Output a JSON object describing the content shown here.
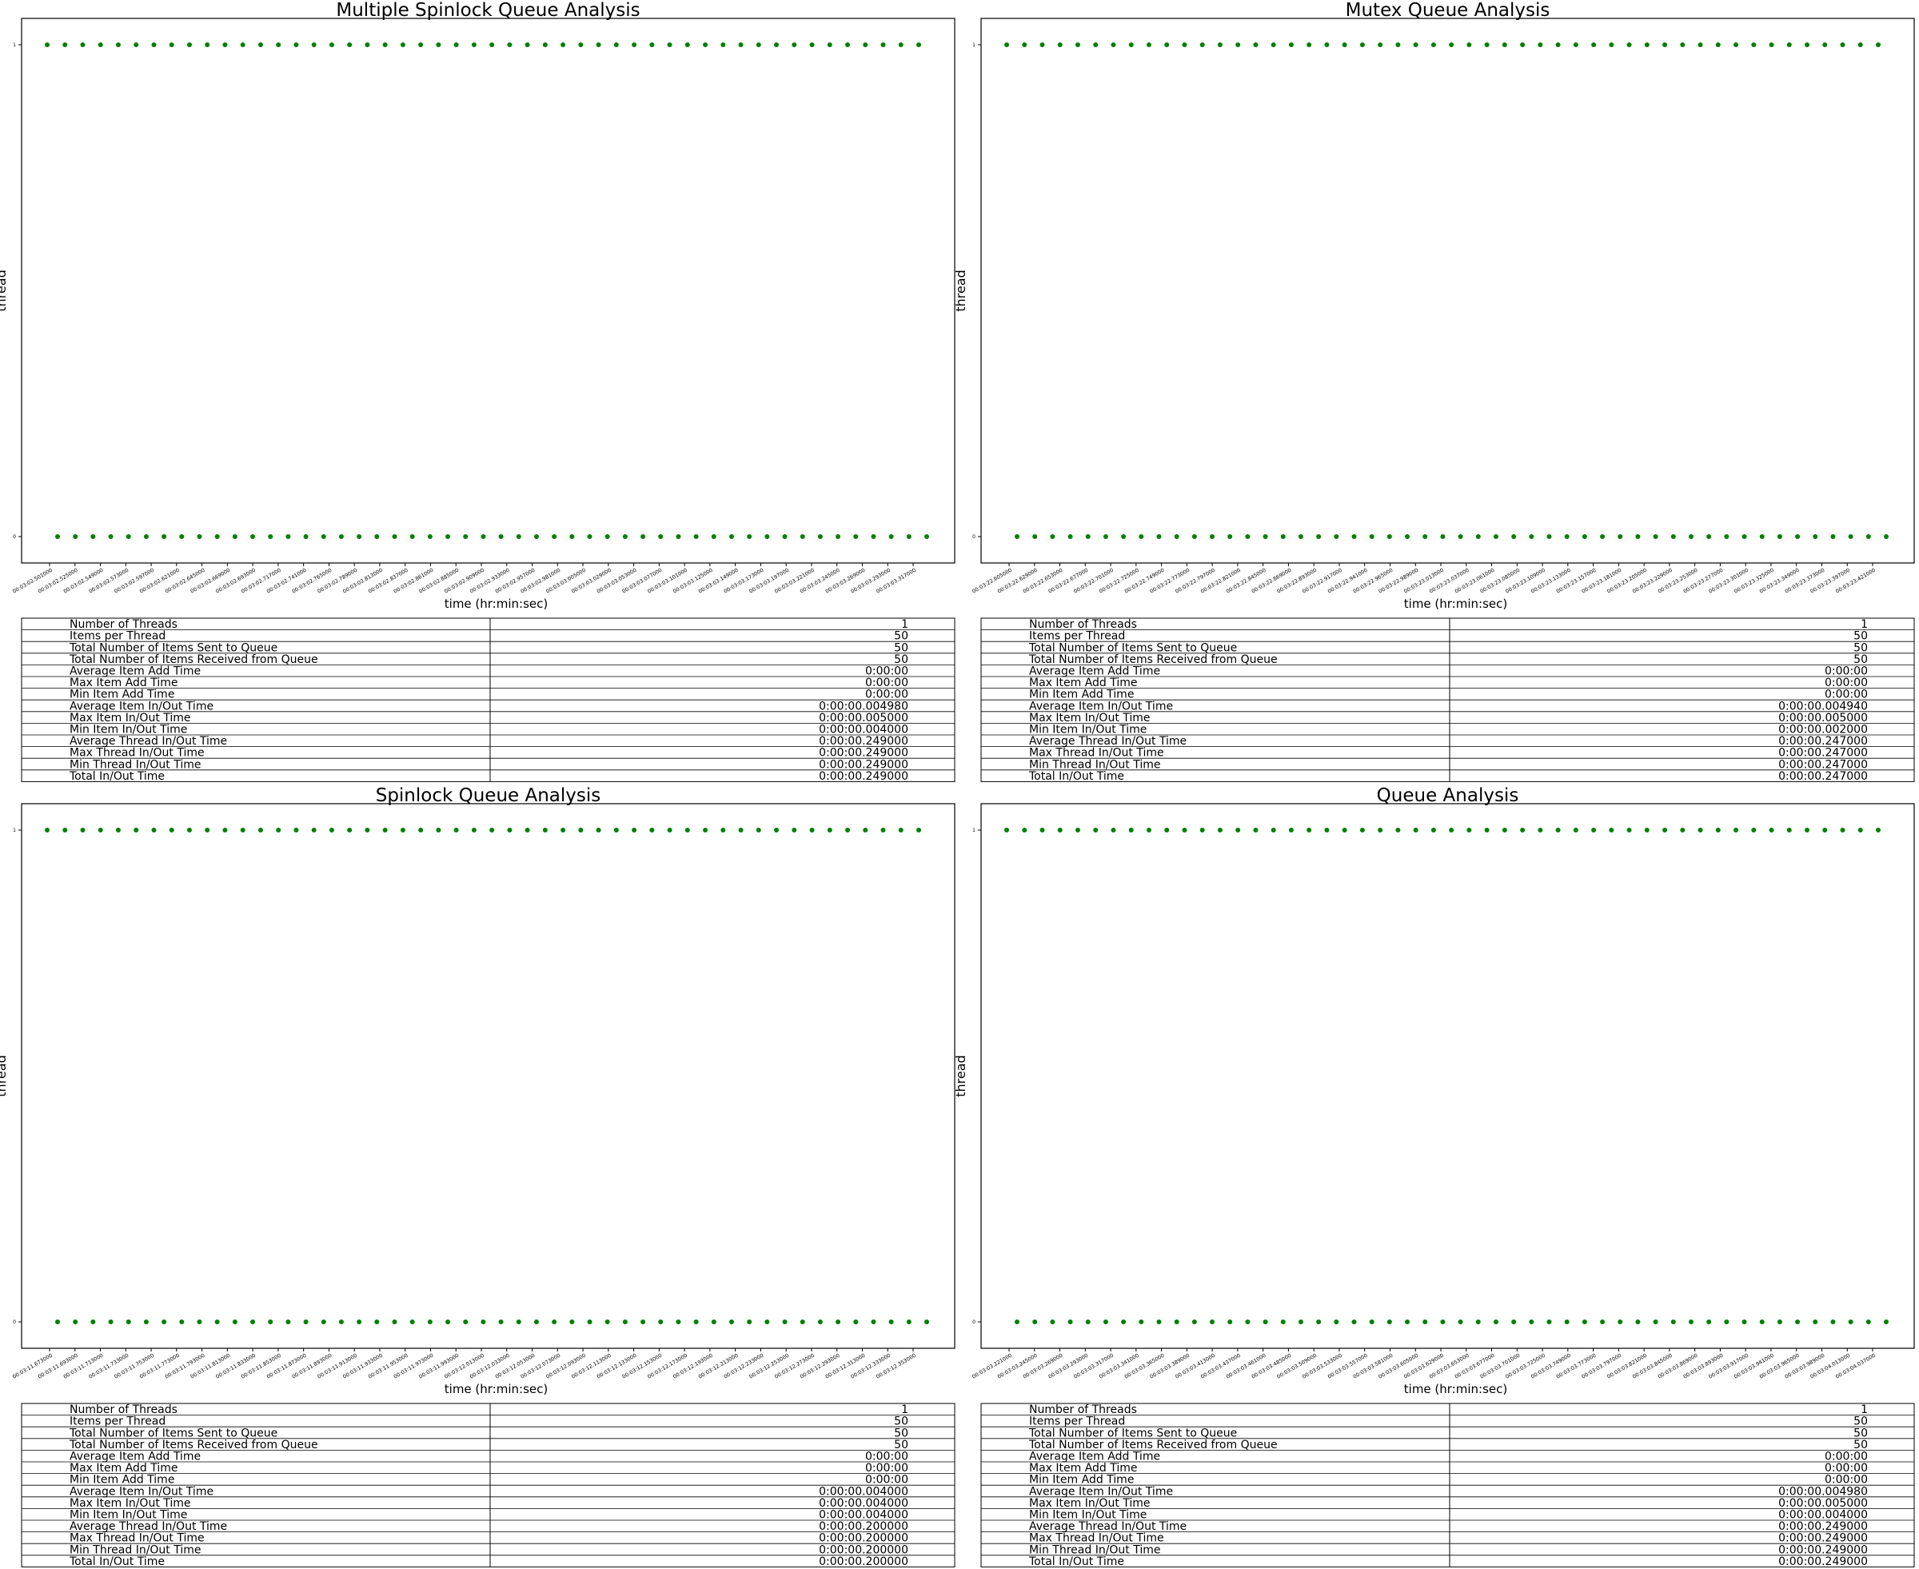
{
  "figure": {
    "marker_color": "#008000",
    "axis_color": "#000000",
    "grid": false,
    "legend": "none"
  },
  "chart_data": [
    {
      "type": "scatter",
      "title": "Multiple Spinlock Queue Analysis",
      "xlabel": "time (hr:min:sec)",
      "ylabel": "thread",
      "yticks": [
        "0",
        "1"
      ],
      "series": [
        {
          "y": 1,
          "count": 50
        },
        {
          "y": 0,
          "count": 50
        }
      ],
      "xticks": [
        "00:03:02.501000",
        "00:03:02.525000",
        "00:03:02.549000",
        "00:03:02.573000",
        "00:03:02.597000",
        "00:03:02.621000",
        "00:03:02.645000",
        "00:03:02.669000",
        "00:03:02.693000",
        "00:03:02.717000",
        "00:03:02.741000",
        "00:03:02.765000",
        "00:03:02.789000",
        "00:03:02.813000",
        "00:03:02.837000",
        "00:03:02.861000",
        "00:03:02.885000",
        "00:03:02.909000",
        "00:03:02.933000",
        "00:03:02.957000",
        "00:03:02.981000",
        "00:03:03.005000",
        "00:03:03.029000",
        "00:03:03.053000",
        "00:03:03.077000",
        "00:03:03.101000",
        "00:03:03.125000",
        "00:03:03.149000",
        "00:03:03.173000",
        "00:03:03.197000",
        "00:03:03.221000",
        "00:03:03.245000",
        "00:03:03.269000",
        "00:03:03.293000",
        "00:03:03.317000"
      ],
      "table": [
        [
          "Number of Threads",
          "1"
        ],
        [
          "Items per Thread",
          "50"
        ],
        [
          "Total Number of Items Sent to Queue",
          "50"
        ],
        [
          "Total Number of Items Received from Queue",
          "50"
        ],
        [
          "Average Item Add Time",
          "0:00:00"
        ],
        [
          "Max Item Add Time",
          "0:00:00"
        ],
        [
          "Min Item Add Time",
          "0:00:00"
        ],
        [
          "Average Item In/Out Time",
          "0:00:00.004980"
        ],
        [
          "Max Item In/Out Time",
          "0:00:00.005000"
        ],
        [
          "Min Item In/Out Time",
          "0:00:00.004000"
        ],
        [
          "Average Thread In/Out Time",
          "0:00:00.249000"
        ],
        [
          "Max Thread In/Out Time",
          "0:00:00.249000"
        ],
        [
          "Min Thread In/Out Time",
          "0:00:00.249000"
        ],
        [
          "Total In/Out Time",
          "0:00:00.249000"
        ]
      ]
    },
    {
      "type": "scatter",
      "title": "Mutex Queue Analysis",
      "xlabel": "time (hr:min:sec)",
      "ylabel": "thread",
      "yticks": [
        "0",
        "1"
      ],
      "series": [
        {
          "y": 1,
          "count": 50
        },
        {
          "y": 0,
          "count": 50
        }
      ],
      "xticks": [
        "00:03:22.605000",
        "00:03:22.629000",
        "00:03:22.653000",
        "00:03:22.677000",
        "00:03:22.701000",
        "00:03:22.725000",
        "00:03:22.749000",
        "00:03:22.773000",
        "00:03:22.797000",
        "00:03:22.821000",
        "00:03:22.845000",
        "00:03:22.869000",
        "00:03:22.893000",
        "00:03:22.917000",
        "00:03:22.941000",
        "00:03:22.965000",
        "00:03:22.989000",
        "00:03:23.013000",
        "00:03:23.037000",
        "00:03:23.061000",
        "00:03:23.085000",
        "00:03:23.109000",
        "00:03:23.133000",
        "00:03:23.157000",
        "00:03:23.181000",
        "00:03:23.205000",
        "00:03:23.229000",
        "00:03:23.253000",
        "00:03:23.277000",
        "00:03:23.301000",
        "00:03:23.325000",
        "00:03:23.349000",
        "00:03:23.373000",
        "00:03:23.397000",
        "00:03:23.421000"
      ],
      "table": [
        [
          "Number of Threads",
          "1"
        ],
        [
          "Items per Thread",
          "50"
        ],
        [
          "Total Number of Items Sent to Queue",
          "50"
        ],
        [
          "Total Number of Items Received from Queue",
          "50"
        ],
        [
          "Average Item Add Time",
          "0:00:00"
        ],
        [
          "Max Item Add Time",
          "0:00:00"
        ],
        [
          "Min Item Add Time",
          "0:00:00"
        ],
        [
          "Average Item In/Out Time",
          "0:00:00.004940"
        ],
        [
          "Max Item In/Out Time",
          "0:00:00.005000"
        ],
        [
          "Min Item In/Out Time",
          "0:00:00.002000"
        ],
        [
          "Average Thread In/Out Time",
          "0:00:00.247000"
        ],
        [
          "Max Thread In/Out Time",
          "0:00:00.247000"
        ],
        [
          "Min Thread In/Out Time",
          "0:00:00.247000"
        ],
        [
          "Total In/Out Time",
          "0:00:00.247000"
        ]
      ]
    },
    {
      "type": "scatter",
      "title": "Spinlock Queue Analysis",
      "xlabel": "time (hr:min:sec)",
      "ylabel": "thread",
      "yticks": [
        "0",
        "1"
      ],
      "series": [
        {
          "y": 1,
          "count": 50
        },
        {
          "y": 0,
          "count": 50
        }
      ],
      "xticks": [
        "00:03:11.673000",
        "00:03:11.693000",
        "00:03:11.713000",
        "00:03:11.733000",
        "00:03:11.753000",
        "00:03:11.773000",
        "00:03:11.793000",
        "00:03:11.813000",
        "00:03:11.833000",
        "00:03:11.853000",
        "00:03:11.873000",
        "00:03:11.893000",
        "00:03:11.913000",
        "00:03:11.933000",
        "00:03:11.953000",
        "00:03:11.973000",
        "00:03:11.993000",
        "00:03:12.013000",
        "00:03:12.033000",
        "00:03:12.053000",
        "00:03:12.073000",
        "00:03:12.093000",
        "00:03:12.113000",
        "00:03:12.133000",
        "00:03:12.153000",
        "00:03:12.173000",
        "00:03:12.193000",
        "00:03:12.213000",
        "00:03:12.233000",
        "00:03:12.253000",
        "00:03:12.273000",
        "00:03:12.293000",
        "00:03:12.313000",
        "00:03:12.333000",
        "00:03:12.353000"
      ],
      "table": [
        [
          "Number of Threads",
          "1"
        ],
        [
          "Items per Thread",
          "50"
        ],
        [
          "Total Number of Items Sent to Queue",
          "50"
        ],
        [
          "Total Number of Items Received from Queue",
          "50"
        ],
        [
          "Average Item Add Time",
          "0:00:00"
        ],
        [
          "Max Item Add Time",
          "0:00:00"
        ],
        [
          "Min Item Add Time",
          "0:00:00"
        ],
        [
          "Average Item In/Out Time",
          "0:00:00.004000"
        ],
        [
          "Max Item In/Out Time",
          "0:00:00.004000"
        ],
        [
          "Min Item In/Out Time",
          "0:00:00.004000"
        ],
        [
          "Average Thread In/Out Time",
          "0:00:00.200000"
        ],
        [
          "Max Thread In/Out Time",
          "0:00:00.200000"
        ],
        [
          "Min Thread In/Out Time",
          "0:00:00.200000"
        ],
        [
          "Total In/Out Time",
          "0:00:00.200000"
        ]
      ]
    },
    {
      "type": "scatter",
      "title": "Queue Analysis",
      "xlabel": "time (hr:min:sec)",
      "ylabel": "thread",
      "yticks": [
        "0",
        "1"
      ],
      "series": [
        {
          "y": 1,
          "count": 50
        },
        {
          "y": 0,
          "count": 50
        }
      ],
      "xticks": [
        "00:03:03.221000",
        "00:03:03.245000",
        "00:03:03.269000",
        "00:03:03.293000",
        "00:03:03.317000",
        "00:03:03.341000",
        "00:03:03.365000",
        "00:03:03.389000",
        "00:03:03.413000",
        "00:03:03.437000",
        "00:03:03.461000",
        "00:03:03.485000",
        "00:03:03.509000",
        "00:03:03.533000",
        "00:03:03.557000",
        "00:03:03.581000",
        "00:03:03.605000",
        "00:03:03.629000",
        "00:03:03.653000",
        "00:03:03.677000",
        "00:03:03.701000",
        "00:03:03.725000",
        "00:03:03.749000",
        "00:03:03.773000",
        "00:03:03.797000",
        "00:03:03.821000",
        "00:03:03.845000",
        "00:03:03.869000",
        "00:03:03.893000",
        "00:03:03.917000",
        "00:03:03.941000",
        "00:03:03.965000",
        "00:03:03.989000",
        "00:03:04.013000",
        "00:03:04.037000"
      ],
      "table": [
        [
          "Number of Threads",
          "1"
        ],
        [
          "Items per Thread",
          "50"
        ],
        [
          "Total Number of Items Sent to Queue",
          "50"
        ],
        [
          "Total Number of Items Received from Queue",
          "50"
        ],
        [
          "Average Item Add Time",
          "0:00:00"
        ],
        [
          "Max Item Add Time",
          "0:00:00"
        ],
        [
          "Min Item Add Time",
          "0:00:00"
        ],
        [
          "Average Item In/Out Time",
          "0:00:00.004980"
        ],
        [
          "Max Item In/Out Time",
          "0:00:00.005000"
        ],
        [
          "Min Item In/Out Time",
          "0:00:00.004000"
        ],
        [
          "Average Thread In/Out Time",
          "0:00:00.249000"
        ],
        [
          "Max Thread In/Out Time",
          "0:00:00.249000"
        ],
        [
          "Min Thread In/Out Time",
          "0:00:00.249000"
        ],
        [
          "Total In/Out Time",
          "0:00:00.249000"
        ]
      ]
    }
  ]
}
